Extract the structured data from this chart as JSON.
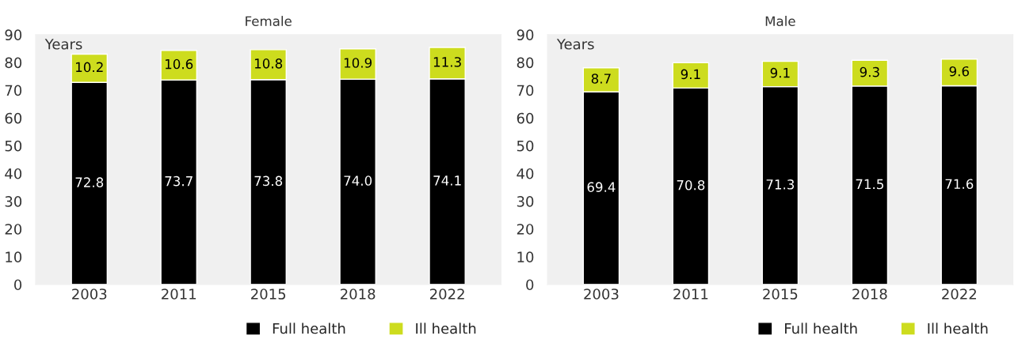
{
  "chart_data": [
    {
      "type": "bar",
      "title": "Female",
      "ylabel": "Years",
      "categories": [
        "2003",
        "2011",
        "2015",
        "2018",
        "2022"
      ],
      "stacked": true,
      "ylim": [
        0,
        90
      ],
      "yticks": [
        0,
        10,
        20,
        30,
        40,
        50,
        60,
        70,
        80,
        90
      ],
      "grid": false,
      "legend": "bottom",
      "series": [
        {
          "name": "Full health",
          "color": "#000000",
          "values": [
            72.8,
            73.7,
            73.8,
            74.0,
            74.1
          ],
          "value_labels": [
            "72.8",
            "73.7",
            "73.8",
            "74.0",
            "74.1"
          ]
        },
        {
          "name": "Ill health",
          "color": "#cddc1e",
          "values": [
            10.2,
            10.6,
            10.8,
            10.9,
            11.3
          ],
          "value_labels": [
            "10.2",
            "10.6",
            "10.8",
            "10.9",
            "11.3"
          ]
        }
      ]
    },
    {
      "type": "bar",
      "title": "Male",
      "ylabel": "Years",
      "categories": [
        "2003",
        "2011",
        "2015",
        "2018",
        "2022"
      ],
      "stacked": true,
      "ylim": [
        0,
        90
      ],
      "yticks": [
        0,
        10,
        20,
        30,
        40,
        50,
        60,
        70,
        80,
        90
      ],
      "grid": false,
      "legend": "bottom",
      "series": [
        {
          "name": "Full health",
          "color": "#000000",
          "values": [
            69.4,
            70.8,
            71.3,
            71.5,
            71.6
          ],
          "value_labels": [
            "69.4",
            "70.8",
            "71.3",
            "71.5",
            "71.6"
          ]
        },
        {
          "name": "Ill health",
          "color": "#cddc1e",
          "values": [
            8.7,
            9.1,
            9.1,
            9.3,
            9.6
          ],
          "value_labels": [
            "8.7",
            "9.1",
            "9.1",
            "9.3",
            "9.6"
          ]
        }
      ]
    }
  ]
}
